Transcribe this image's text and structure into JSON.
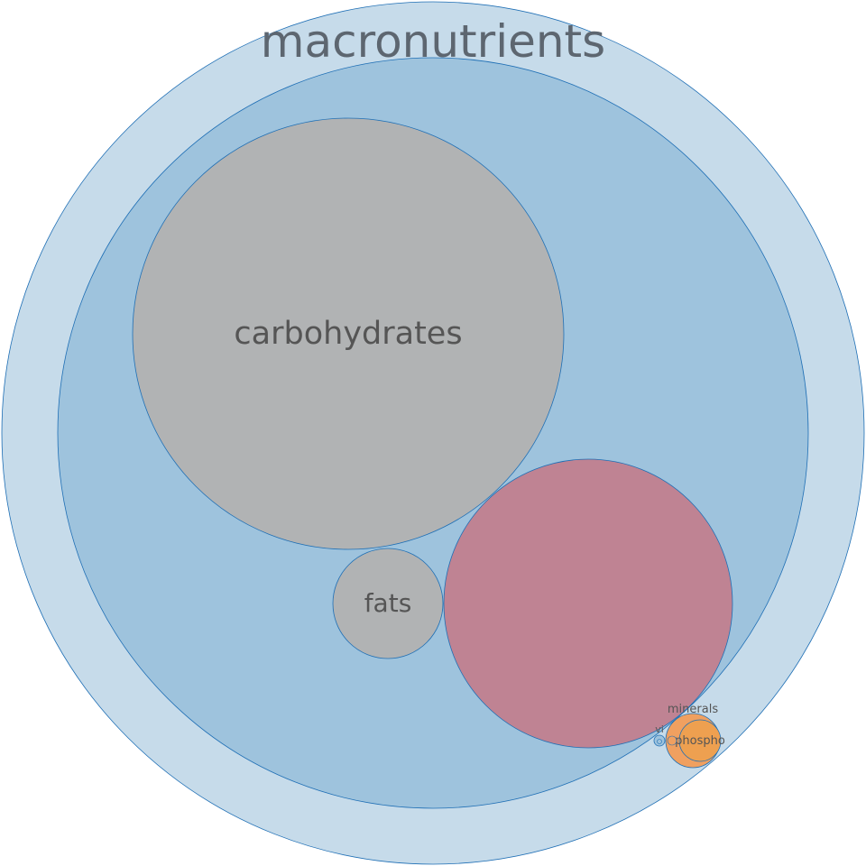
{
  "chart_data": {
    "type": "bubble-pack",
    "title": "macronutrients",
    "colors": {
      "outer": "#c6dbea",
      "inner": "#9ec3dd",
      "stroke": "#1f6fb5",
      "carbohydrates": "#b1b3b4",
      "fats": "#b1b3b4",
      "unlabeled_large": "#bf8393",
      "minerals": "#f0a060",
      "phosphorus": "#eea050",
      "vitamins": "#9ec3dd"
    },
    "nodes": [
      {
        "id": "outer",
        "label": "",
        "value": null
      },
      {
        "id": "inner",
        "label": "",
        "value": null
      },
      {
        "id": "carbohydrates",
        "label": "carbohydrates",
        "value": 100
      },
      {
        "id": "fats",
        "label": "fats",
        "value": 6.6
      },
      {
        "id": "unlabeled_large",
        "label": "",
        "value": 45
      },
      {
        "id": "minerals",
        "label": "minerals",
        "value": 1.6
      },
      {
        "id": "phosphorus",
        "label": "phospho",
        "value": 1.0
      },
      {
        "id": "minerals_small",
        "label": "",
        "value": 0.05
      },
      {
        "id": "vitamins",
        "label": "vi",
        "value": 0.08
      },
      {
        "id": "vitamin_small",
        "label": "",
        "value": 0.02
      }
    ]
  }
}
